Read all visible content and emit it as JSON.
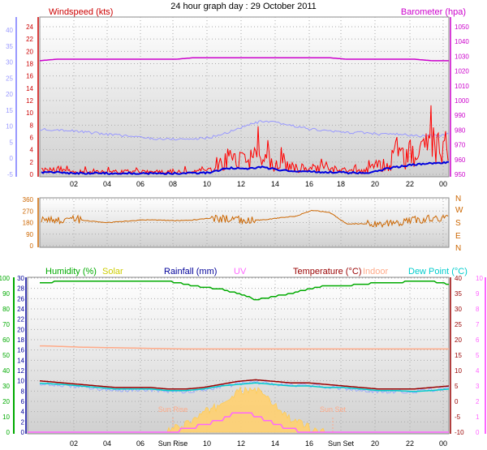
{
  "page_title": "24 hour graph day : 29 October 2011",
  "colors": {
    "wind": "#ff0000",
    "gust_avg": "#0000dd",
    "baro": "#cc00cc",
    "temp_axis": "#9999ff",
    "direction": "#cc6600",
    "humidity": "#00aa00",
    "solar": "#cccc00",
    "rainfall": "#000099",
    "uv": "#ff66ff",
    "temperature": "#990000",
    "indoor": "#ffaa88",
    "dewpoint": "#00cccc",
    "panel_top": "#ffffff",
    "panel_bottom": "#d0d0d0"
  },
  "x_ticks": [
    "02",
    "04",
    "06",
    "08",
    "10",
    "12",
    "14",
    "16",
    "18",
    "20",
    "22",
    "00"
  ],
  "lower_x_ticks": [
    "02",
    "04",
    "06",
    "Sun Rise",
    "10",
    "12",
    "14",
    "16",
    "Sun Set",
    "20",
    "22",
    "00"
  ],
  "chart_data": [
    {
      "type": "line",
      "name": "wind-barometer",
      "legend": [
        "Windspeed (kts)",
        "Barometer (hpa)"
      ],
      "left_axis_outer": {
        "ticks": [
          -5,
          0,
          5,
          10,
          15,
          20,
          25,
          30,
          35,
          40
        ]
      },
      "left_axis_inner": {
        "ticks": [
          0,
          2,
          4,
          6,
          8,
          10,
          12,
          14,
          16,
          18,
          20,
          22,
          24
        ]
      },
      "right_axis": {
        "ticks": [
          950,
          960,
          970,
          980,
          990,
          1000,
          1010,
          1020,
          1030,
          1040,
          1050
        ]
      },
      "series": [
        {
          "name": "Windspeed (kts)",
          "y_center": [
            1,
            1,
            0.5,
            0.5,
            0.5,
            0.5,
            0.5,
            0.5,
            0.5,
            0.5,
            0.8,
            3,
            2.5,
            3.5,
            2,
            1.5,
            1.2,
            1,
            0.8,
            0.5,
            2,
            3.5,
            4.5,
            5,
            5.5
          ]
        },
        {
          "name": "Barometer (hpa)",
          "y": [
            1027,
            1028,
            1028,
            1028,
            1028,
            1028,
            1028,
            1028,
            1028,
            1029,
            1029,
            1029,
            1029,
            1029,
            1029,
            1029,
            1029,
            1029,
            1028,
            1028,
            1028,
            1028,
            1028,
            1027,
            1027
          ]
        }
      ]
    },
    {
      "type": "line",
      "name": "wind-direction",
      "left_axis": {
        "ticks": [
          0,
          90,
          180,
          270,
          360
        ]
      },
      "right_axis": {
        "ticks": [
          "N",
          "W",
          "S",
          "E",
          "N"
        ]
      },
      "series": [
        {
          "name": "direction",
          "y": [
            200,
            200,
            210,
            190,
            180,
            190,
            200,
            200,
            195,
            200,
            215,
            210,
            200,
            200,
            215,
            230,
            275,
            260,
            170,
            170,
            170,
            170,
            200,
            210,
            215
          ]
        }
      ]
    },
    {
      "type": "line",
      "name": "humidity-temperature",
      "legend": [
        "Humidity (%)",
        "Solar",
        "Rainfall (mm)",
        "UV",
        "Temperature (°C)",
        "Indoor",
        "Dew Point (°C)"
      ],
      "left_axis_outer": {
        "ticks": [
          0,
          10,
          20,
          30,
          40,
          50,
          60,
          70,
          80,
          90,
          100
        ]
      },
      "left_axis_inner": {
        "ticks": [
          0,
          2,
          4,
          6,
          8,
          10,
          12,
          14,
          16,
          18,
          20,
          22,
          24,
          26,
          28,
          30
        ]
      },
      "right_axis_inner": {
        "ticks": [
          -10,
          -5,
          0,
          5,
          10,
          15,
          20,
          25,
          30,
          35,
          40
        ]
      },
      "right_axis_outer": {
        "ticks": [
          0,
          1,
          2,
          3,
          4,
          5,
          6,
          7,
          8,
          9,
          10
        ]
      },
      "annotations": [
        "Sun Rise",
        "Sun Set"
      ],
      "series": [
        {
          "name": "Humidity (%)",
          "y": [
            96,
            97,
            98,
            98,
            98,
            98,
            98,
            98,
            98,
            96,
            94,
            93,
            90,
            86,
            88,
            90,
            93,
            95,
            95,
            96,
            97,
            97,
            98,
            98,
            96
          ]
        },
        {
          "name": "Temperature (°C)",
          "y": [
            7,
            6.5,
            6,
            5.5,
            5,
            4.5,
            4.5,
            4.5,
            4,
            4,
            4.5,
            5.5,
            6.5,
            7,
            6.5,
            6,
            6,
            5.5,
            5,
            4.5,
            4,
            4,
            4,
            4.5,
            5
          ]
        },
        {
          "name": "Indoor",
          "y": [
            18,
            18,
            17.8,
            17.6,
            17.5,
            17.4,
            17.3,
            17.2,
            17.1,
            17,
            17,
            17,
            17,
            17,
            17,
            17,
            17,
            17,
            17,
            17,
            17,
            17,
            17,
            17,
            17
          ]
        },
        {
          "name": "Dew Point (°C)",
          "y": [
            6,
            5.8,
            5.5,
            5,
            4.5,
            4,
            4,
            4,
            3.5,
            3.5,
            4,
            5,
            5.5,
            6,
            5.5,
            5,
            5,
            4.5,
            4.5,
            4,
            3.5,
            3.5,
            3.2,
            3.5,
            4
          ]
        },
        {
          "name": "Solar",
          "y": [
            0,
            0,
            0,
            0,
            0,
            0,
            0,
            0,
            0,
            0.5,
            1.2,
            1.8,
            2.6,
            2.8,
            1.8,
            0.8,
            0.3,
            0,
            0,
            0,
            0,
            0,
            0,
            0,
            0
          ]
        },
        {
          "name": "UV",
          "y": [
            0,
            0,
            0,
            0,
            0,
            0,
            0,
            0,
            0,
            0.2,
            0.5,
            0.8,
            1.3,
            1.1,
            0.6,
            0.2,
            0,
            0,
            0,
            0,
            0,
            0,
            0,
            0,
            0
          ]
        }
      ]
    }
  ]
}
